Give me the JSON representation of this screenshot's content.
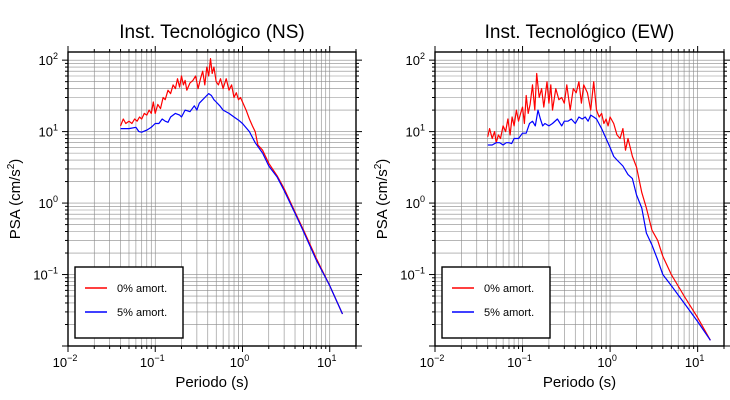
{
  "chart_data": [
    {
      "type": "line",
      "title": "Inst. Tecnológico (NS)",
      "xlabel": "Periodo (s)",
      "ylabel": "PSA (cm/s²)",
      "ylabel_parts": [
        "PSA (cm/s",
        "2",
        ")"
      ],
      "xscale": "log",
      "yscale": "log",
      "xlim": [
        0.01,
        20
      ],
      "ylim": [
        0.01,
        130
      ],
      "grid": true,
      "legend_position": "bottom-left",
      "xticks": [
        {
          "value": 0.01,
          "base": "10",
          "exp": "−2"
        },
        {
          "value": 0.1,
          "base": "10",
          "exp": "−1"
        },
        {
          "value": 1,
          "base": "10",
          "exp": "0"
        },
        {
          "value": 10,
          "base": "10",
          "exp": "1"
        }
      ],
      "yticks": [
        {
          "value": 0.1,
          "base": "10",
          "exp": "−1"
        },
        {
          "value": 1,
          "base": "10",
          "exp": "0"
        },
        {
          "value": 10,
          "base": "10",
          "exp": "1"
        },
        {
          "value": 100,
          "base": "10",
          "exp": "2"
        }
      ],
      "series": [
        {
          "name": "0% amort.",
          "color": "#ff0000",
          "x": [
            0.04,
            0.043,
            0.046,
            0.05,
            0.054,
            0.058,
            0.062,
            0.066,
            0.07,
            0.075,
            0.08,
            0.085,
            0.09,
            0.095,
            0.1,
            0.107,
            0.115,
            0.123,
            0.13,
            0.14,
            0.15,
            0.16,
            0.17,
            0.18,
            0.19,
            0.2,
            0.21,
            0.22,
            0.23,
            0.25,
            0.27,
            0.29,
            0.31,
            0.33,
            0.35,
            0.37,
            0.39,
            0.41,
            0.43,
            0.45,
            0.47,
            0.5,
            0.53,
            0.56,
            0.6,
            0.65,
            0.7,
            0.75,
            0.8,
            0.85,
            0.9,
            0.95,
            1.0,
            1.1,
            1.2,
            1.3,
            1.4,
            1.5,
            1.7,
            2.0,
            2.5,
            3,
            4,
            5,
            7,
            10,
            14
          ],
          "y": [
            12,
            15,
            13,
            14,
            13,
            15,
            14,
            16,
            15,
            18,
            17,
            20,
            18,
            26,
            18,
            24,
            21,
            30,
            28,
            38,
            34,
            45,
            40,
            55,
            42,
            60,
            45,
            52,
            38,
            48,
            52,
            60,
            40,
            55,
            70,
            45,
            80,
            60,
            105,
            65,
            80,
            50,
            45,
            55,
            40,
            55,
            38,
            45,
            30,
            35,
            28,
            30,
            26,
            20,
            15,
            12,
            10,
            6.5,
            5.5,
            3.6,
            2.4,
            1.6,
            0.75,
            0.42,
            0.17,
            0.07,
            0.028
          ]
        },
        {
          "name": "5% amort.",
          "color": "#0000ff",
          "x": [
            0.04,
            0.05,
            0.06,
            0.065,
            0.07,
            0.08,
            0.09,
            0.1,
            0.11,
            0.12,
            0.13,
            0.14,
            0.15,
            0.17,
            0.19,
            0.2,
            0.22,
            0.25,
            0.28,
            0.3,
            0.32,
            0.35,
            0.38,
            0.41,
            0.44,
            0.47,
            0.5,
            0.55,
            0.6,
            0.7,
            0.8,
            0.9,
            1.0,
            1.2,
            1.4,
            1.7,
            2.0,
            2.5,
            3,
            4,
            5,
            7,
            10,
            14
          ],
          "y": [
            11,
            11,
            11.5,
            10,
            9.8,
            10.5,
            11.5,
            13,
            13,
            15,
            14,
            13.5,
            16,
            18,
            17,
            16,
            20,
            19,
            23,
            20,
            25,
            28,
            31,
            34,
            32,
            28,
            26,
            23,
            20,
            18,
            16,
            14.5,
            13,
            10,
            7,
            5,
            3.3,
            2.3,
            1.5,
            0.72,
            0.4,
            0.16,
            0.07,
            0.028
          ]
        }
      ]
    },
    {
      "type": "line",
      "title": "Inst. Tecnológico (EW)",
      "xlabel": "Periodo (s)",
      "ylabel": "PSA (cm/s²)",
      "ylabel_parts": [
        "PSA (cm/s",
        "2",
        ")"
      ],
      "xscale": "log",
      "yscale": "log",
      "xlim": [
        0.01,
        20
      ],
      "ylim": [
        0.01,
        130
      ],
      "grid": true,
      "legend_position": "bottom-left",
      "xticks": [
        {
          "value": 0.01,
          "base": "10",
          "exp": "−2"
        },
        {
          "value": 0.1,
          "base": "10",
          "exp": "−1"
        },
        {
          "value": 1,
          "base": "10",
          "exp": "0"
        },
        {
          "value": 10,
          "base": "10",
          "exp": "1"
        }
      ],
      "yticks": [
        {
          "value": 0.1,
          "base": "10",
          "exp": "−1"
        },
        {
          "value": 1,
          "base": "10",
          "exp": "0"
        },
        {
          "value": 10,
          "base": "10",
          "exp": "1"
        },
        {
          "value": 100,
          "base": "10",
          "exp": "2"
        }
      ],
      "series": [
        {
          "name": "0% amort.",
          "color": "#ff0000",
          "x": [
            0.04,
            0.042,
            0.045,
            0.048,
            0.05,
            0.053,
            0.056,
            0.06,
            0.064,
            0.068,
            0.072,
            0.076,
            0.08,
            0.085,
            0.09,
            0.095,
            0.1,
            0.105,
            0.11,
            0.116,
            0.122,
            0.13,
            0.138,
            0.145,
            0.155,
            0.165,
            0.175,
            0.19,
            0.2,
            0.21,
            0.22,
            0.24,
            0.26,
            0.28,
            0.3,
            0.32,
            0.35,
            0.38,
            0.41,
            0.44,
            0.47,
            0.5,
            0.55,
            0.6,
            0.65,
            0.7,
            0.75,
            0.8,
            0.85,
            0.9,
            0.95,
            1.0,
            1.1,
            1.2,
            1.3,
            1.4,
            1.5,
            1.6,
            1.8,
            2.0,
            2.3,
            2.6,
            3.0,
            3.5,
            4.0,
            5,
            7,
            10,
            14
          ],
          "y": [
            8.5,
            11,
            8,
            10,
            7,
            9,
            8,
            12,
            10,
            15,
            9,
            16,
            12,
            20,
            14,
            18,
            22,
            13,
            32,
            18,
            24,
            45,
            20,
            65,
            30,
            40,
            22,
            50,
            25,
            45,
            20,
            40,
            28,
            30,
            25,
            45,
            20,
            40,
            35,
            50,
            25,
            45,
            35,
            20,
            50,
            20,
            16,
            18,
            13,
            15,
            12,
            16,
            13,
            9,
            8,
            11,
            5.5,
            8,
            4.5,
            3.2,
            1.4,
            0.85,
            0.42,
            0.3,
            0.18,
            0.1,
            0.05,
            0.025,
            0.012
          ]
        },
        {
          "name": "5% amort.",
          "color": "#0000ff",
          "x": [
            0.04,
            0.045,
            0.05,
            0.055,
            0.06,
            0.065,
            0.07,
            0.075,
            0.08,
            0.09,
            0.1,
            0.11,
            0.12,
            0.13,
            0.14,
            0.15,
            0.16,
            0.17,
            0.18,
            0.2,
            0.22,
            0.25,
            0.28,
            0.3,
            0.33,
            0.36,
            0.4,
            0.44,
            0.48,
            0.52,
            0.56,
            0.6,
            0.65,
            0.7,
            0.8,
            0.9,
            1.0,
            1.1,
            1.2,
            1.4,
            1.6,
            1.8,
            2.0,
            2.3,
            2.6,
            3.0,
            3.5,
            4.0,
            5,
            7,
            10,
            14
          ],
          "y": [
            6.5,
            6.5,
            7,
            7,
            6.5,
            7,
            7,
            6.8,
            8,
            8,
            9.5,
            9.5,
            13,
            14,
            12,
            20,
            15,
            12,
            13,
            12,
            13,
            15,
            12,
            14,
            14,
            15,
            13,
            16,
            15,
            16,
            14,
            17,
            16,
            15,
            11,
            8,
            6,
            4.5,
            4,
            3.3,
            2.5,
            2.2,
            1.3,
            0.85,
            0.38,
            0.26,
            0.16,
            0.1,
            0.07,
            0.04,
            0.022,
            0.012
          ]
        }
      ]
    }
  ]
}
